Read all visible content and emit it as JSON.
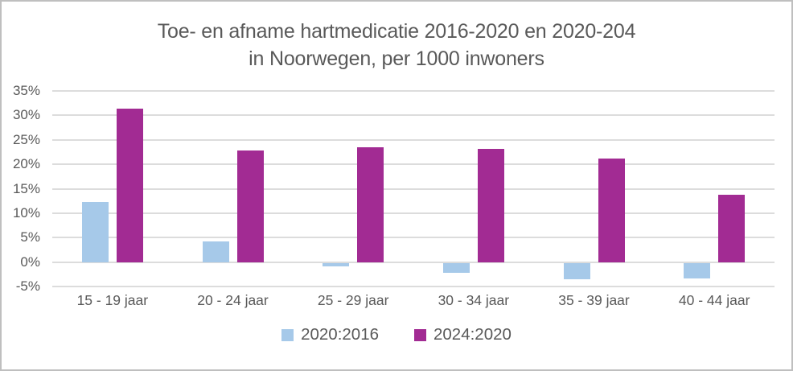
{
  "chart": {
    "title_line1": "Toe- en afname hartmedicatie 2016-2020 en 2020-204",
    "title_line2": "in Noorwegen, per 1000 inwoners"
  },
  "chart_data": {
    "type": "bar",
    "title": "Toe- en afname hartmedicatie 2016-2020 en 2020-204 in Noorwegen, per 1000 inwoners",
    "categories": [
      "15 - 19 jaar",
      "20 - 24 jaar",
      "25 - 29 jaar",
      "30 - 34 jaar",
      "35 - 39 jaar",
      "40 - 44 jaar"
    ],
    "series": [
      {
        "name": "2020:2016",
        "color": "#a6c9e9",
        "values": [
          12.3,
          4.2,
          -0.7,
          -2.0,
          -3.4,
          -3.2
        ]
      },
      {
        "name": "2024:2020",
        "color": "#a22b93",
        "values": [
          31.4,
          22.9,
          23.4,
          23.2,
          21.2,
          13.8
        ]
      }
    ],
    "xlabel": "",
    "ylabel": "",
    "ylim": [
      -5,
      35
    ],
    "ytick_step": 5,
    "ytick_labels": [
      "35%",
      "30%",
      "25%",
      "20%",
      "15%",
      "10%",
      "5%",
      "0%",
      "-5%"
    ],
    "grid": true,
    "legend_position": "bottom"
  },
  "colors": {
    "text": "#595959",
    "gridline": "#dcdcdc",
    "border": "#bfbfbf",
    "background": "#ffffff",
    "series_blue": "#a6c9e9",
    "series_magenta": "#a22b93"
  }
}
